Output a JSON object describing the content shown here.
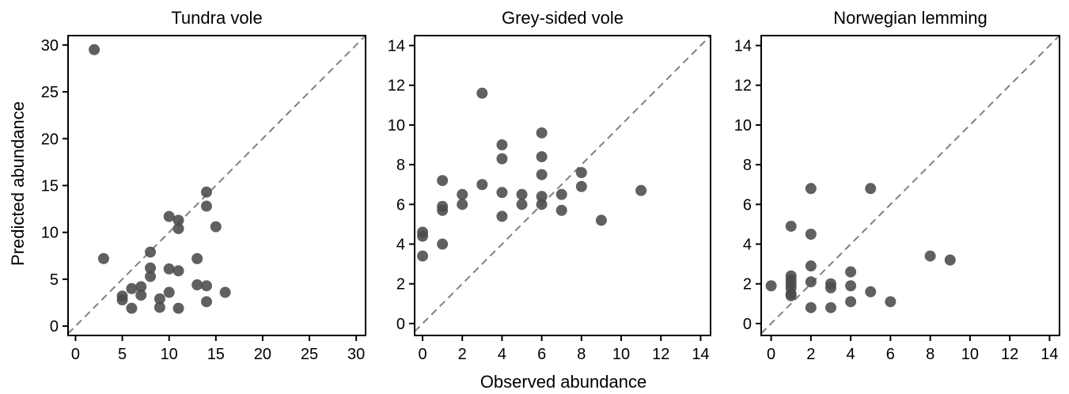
{
  "chart_data": [
    {
      "type": "scatter",
      "title": "Tundra vole",
      "xlim": [
        -0.8,
        31
      ],
      "ylim": [
        -1,
        31
      ],
      "xticks": [
        0,
        5,
        10,
        15,
        20,
        25,
        30
      ],
      "yticks": [
        0,
        5,
        10,
        15,
        20,
        25,
        30
      ],
      "reference_line": "y = x (dashed)",
      "points": [
        {
          "x": 2,
          "y": 29.5
        },
        {
          "x": 3,
          "y": 7.2
        },
        {
          "x": 5,
          "y": 3.2
        },
        {
          "x": 5,
          "y": 2.8
        },
        {
          "x": 6,
          "y": 4.0
        },
        {
          "x": 6,
          "y": 1.9
        },
        {
          "x": 7,
          "y": 4.2
        },
        {
          "x": 7,
          "y": 3.3
        },
        {
          "x": 8,
          "y": 7.9
        },
        {
          "x": 8,
          "y": 6.2
        },
        {
          "x": 8,
          "y": 5.3
        },
        {
          "x": 9,
          "y": 2.9
        },
        {
          "x": 9,
          "y": 2.0
        },
        {
          "x": 10,
          "y": 11.7
        },
        {
          "x": 10,
          "y": 6.1
        },
        {
          "x": 10,
          "y": 3.6
        },
        {
          "x": 11,
          "y": 11.3
        },
        {
          "x": 11,
          "y": 10.4
        },
        {
          "x": 11,
          "y": 5.9
        },
        {
          "x": 11,
          "y": 1.9
        },
        {
          "x": 13,
          "y": 7.2
        },
        {
          "x": 13,
          "y": 4.4
        },
        {
          "x": 14,
          "y": 14.3
        },
        {
          "x": 14,
          "y": 12.8
        },
        {
          "x": 14,
          "y": 4.3
        },
        {
          "x": 14,
          "y": 2.6
        },
        {
          "x": 15,
          "y": 10.6
        },
        {
          "x": 16,
          "y": 3.6
        }
      ]
    },
    {
      "type": "scatter",
      "title": "Grey-sided vole",
      "xlim": [
        -0.4,
        14.5
      ],
      "ylim": [
        -0.6,
        14.5
      ],
      "xticks": [
        0,
        2,
        4,
        6,
        8,
        10,
        12,
        14
      ],
      "yticks": [
        0,
        2,
        4,
        6,
        8,
        10,
        12,
        14
      ],
      "reference_line": "y = x (dashed)",
      "points": [
        {
          "x": 0,
          "y": 4.6
        },
        {
          "x": 0,
          "y": 4.4
        },
        {
          "x": 0,
          "y": 3.4
        },
        {
          "x": 1,
          "y": 7.2
        },
        {
          "x": 1,
          "y": 5.9
        },
        {
          "x": 1,
          "y": 5.7
        },
        {
          "x": 1,
          "y": 4.0
        },
        {
          "x": 2,
          "y": 6.5
        },
        {
          "x": 2,
          "y": 6.0
        },
        {
          "x": 3,
          "y": 11.6
        },
        {
          "x": 3,
          "y": 7.0
        },
        {
          "x": 4,
          "y": 9.0
        },
        {
          "x": 4,
          "y": 8.3
        },
        {
          "x": 4,
          "y": 6.6
        },
        {
          "x": 4,
          "y": 5.4
        },
        {
          "x": 5,
          "y": 6.5
        },
        {
          "x": 5,
          "y": 6.0
        },
        {
          "x": 6,
          "y": 9.6
        },
        {
          "x": 6,
          "y": 8.4
        },
        {
          "x": 6,
          "y": 7.5
        },
        {
          "x": 6,
          "y": 6.4
        },
        {
          "x": 6,
          "y": 6.0
        },
        {
          "x": 7,
          "y": 6.5
        },
        {
          "x": 7,
          "y": 5.7
        },
        {
          "x": 8,
          "y": 7.6
        },
        {
          "x": 8,
          "y": 6.9
        },
        {
          "x": 9,
          "y": 5.2
        },
        {
          "x": 11,
          "y": 6.7
        }
      ]
    },
    {
      "type": "scatter",
      "title": "Norwegian lemming",
      "xlim": [
        -0.5,
        14.5
      ],
      "ylim": [
        -0.6,
        14.5
      ],
      "xticks": [
        0,
        2,
        4,
        6,
        8,
        10,
        12,
        14
      ],
      "yticks": [
        0,
        2,
        4,
        6,
        8,
        10,
        12,
        14
      ],
      "reference_line": "y = x (dashed)",
      "points": [
        {
          "x": 0,
          "y": 1.9
        },
        {
          "x": 1,
          "y": 4.9
        },
        {
          "x": 1,
          "y": 2.4
        },
        {
          "x": 1,
          "y": 2.2
        },
        {
          "x": 1,
          "y": 2.0
        },
        {
          "x": 1,
          "y": 1.8
        },
        {
          "x": 1,
          "y": 1.5
        },
        {
          "x": 1,
          "y": 1.4
        },
        {
          "x": 2,
          "y": 6.8
        },
        {
          "x": 2,
          "y": 4.5
        },
        {
          "x": 2,
          "y": 2.9
        },
        {
          "x": 2,
          "y": 2.1
        },
        {
          "x": 2,
          "y": 0.8
        },
        {
          "x": 3,
          "y": 2.0
        },
        {
          "x": 3,
          "y": 1.8
        },
        {
          "x": 3,
          "y": 0.8
        },
        {
          "x": 4,
          "y": 2.6
        },
        {
          "x": 4,
          "y": 1.9
        },
        {
          "x": 4,
          "y": 1.1
        },
        {
          "x": 5,
          "y": 6.8
        },
        {
          "x": 5,
          "y": 1.6
        },
        {
          "x": 6,
          "y": 1.1
        },
        {
          "x": 8,
          "y": 3.4
        },
        {
          "x": 9,
          "y": 3.2
        }
      ]
    }
  ],
  "figure": {
    "ylabel": "Predicted abundance",
    "xlabel": "Observed abundance",
    "point_color": "#4a4a4a",
    "refline_color": "#808080",
    "axis_color": "#000000"
  }
}
